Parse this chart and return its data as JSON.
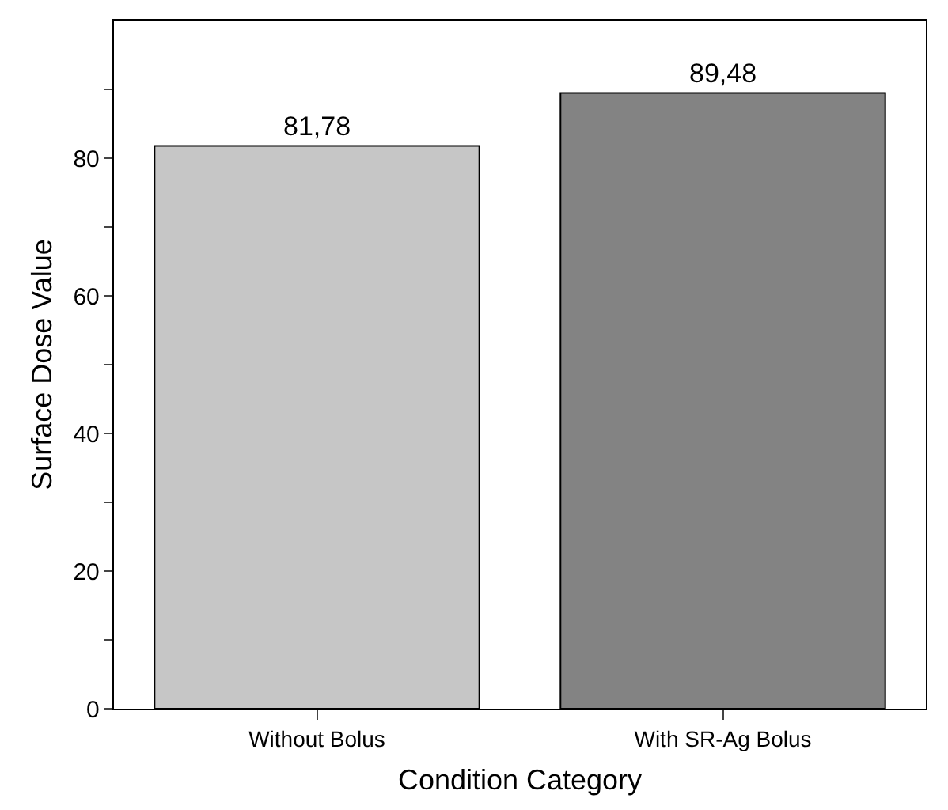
{
  "chart_data": {
    "type": "bar",
    "xlabel": "Condition Category",
    "ylabel": "Surface Dose Value",
    "categories": [
      "Without Bolus",
      "With SR-Ag Bolus"
    ],
    "values": [
      81.78,
      89.48
    ],
    "colors": [
      "#c6c6c6",
      "#838383"
    ],
    "value_labels": [
      "81,78",
      "89,48"
    ],
    "ylim": [
      0,
      100
    ],
    "yticks": [
      0,
      {
        "value": 10,
        "label": null
      },
      20,
      {
        "value": 30,
        "label": null
      },
      40,
      {
        "value": 50,
        "label": null
      },
      60,
      {
        "value": 70,
        "label": null
      },
      80,
      {
        "value": 90,
        "label": null
      }
    ]
  }
}
